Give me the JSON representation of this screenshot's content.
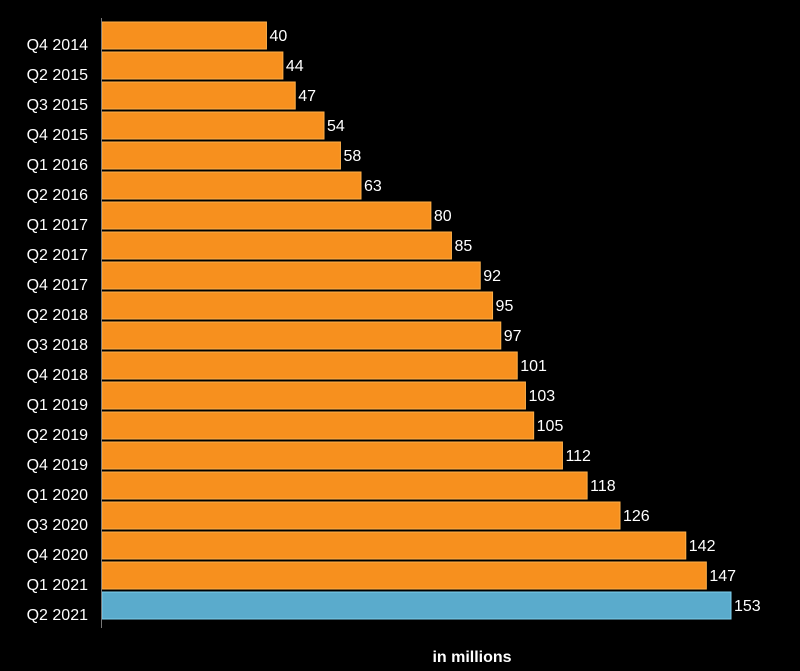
{
  "chart_data": {
    "type": "bar",
    "orientation": "horizontal",
    "title": "",
    "xlabel": "in millions",
    "ylabel": "",
    "categories": [
      "Q4 2014",
      "Q2 2015",
      "Q3 2015",
      "Q4 2015",
      "Q1 2016",
      "Q2 2016",
      "Q1 2017",
      "Q2 2017",
      "Q4 2017",
      "Q2 2018",
      "Q3 2018",
      "Q4 2018",
      "Q1 2019",
      "Q2 2019",
      "Q4 2019",
      "Q1 2020",
      "Q3 2020",
      "Q4 2020",
      "Q1 2021",
      "Q2 2021"
    ],
    "values": [
      40,
      44,
      47,
      54,
      58,
      63,
      80,
      85,
      92,
      95,
      97,
      101,
      103,
      105,
      112,
      118,
      126,
      142,
      147,
      153
    ],
    "xlim": [
      0,
      153
    ],
    "grid": false,
    "legend": "none",
    "colors": {
      "default": "#f7901e",
      "highlight": "#5aabcc",
      "background": "#000000",
      "text": "#ffffff"
    },
    "highlight_index": 19
  }
}
